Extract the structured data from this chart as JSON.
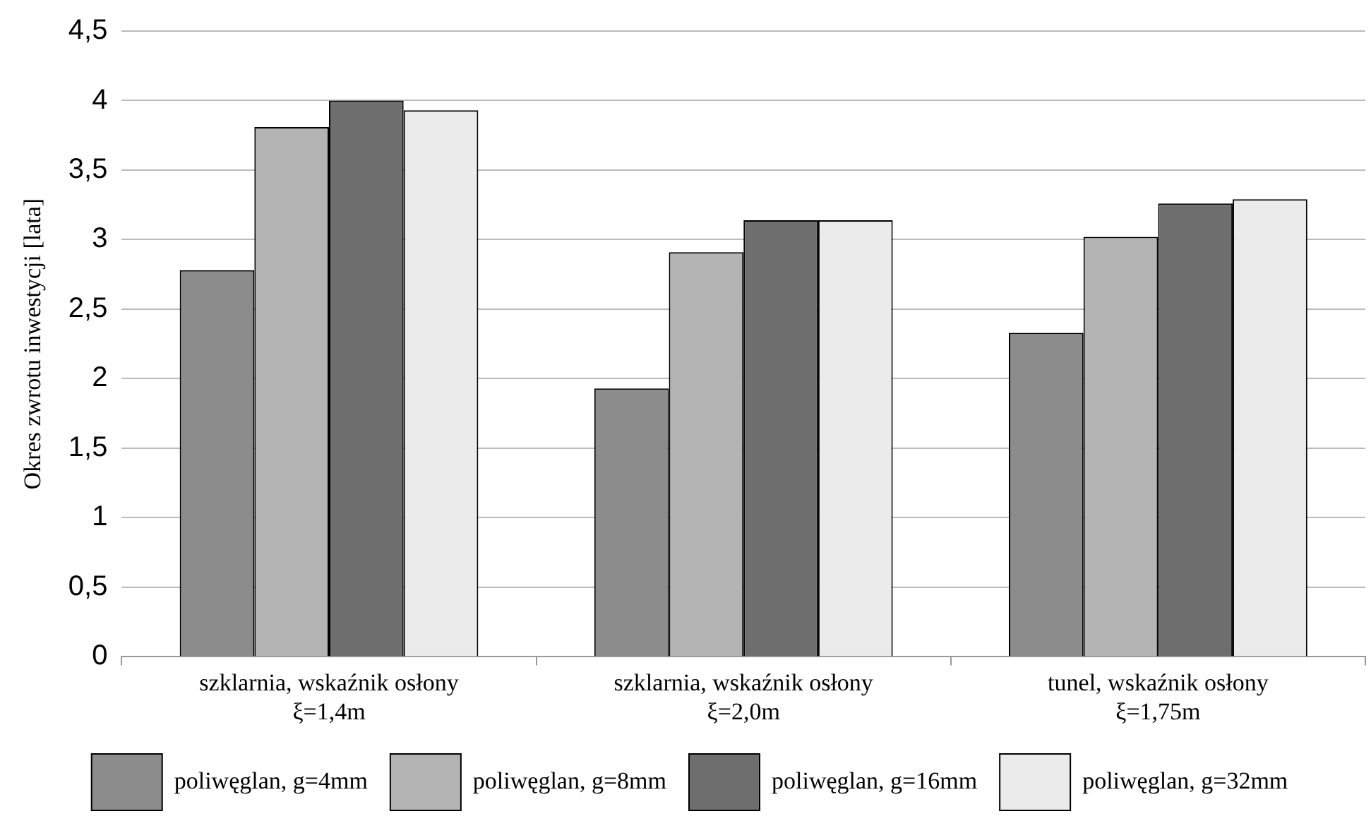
{
  "chart_data": {
    "type": "bar",
    "ylabel": "Okres zwrotu inwestycji [lata]",
    "categories": [
      "szklarnia, wskaźnik osłony ξ=1,4m",
      "szklarnia, wskaźnik osłony ξ=2,0m",
      "tunel, wskaźnik osłony ξ=1,75m"
    ],
    "series": [
      {
        "name": "poliwęglan, g=4mm",
        "color": "#8c8c8c",
        "values": [
          2.78,
          1.93,
          2.33
        ]
      },
      {
        "name": "poliwęglan, g=8mm",
        "color": "#b4b4b4",
        "values": [
          3.81,
          2.91,
          3.02
        ]
      },
      {
        "name": "poliwęglan, g=16mm",
        "color": "#6e6e6e",
        "values": [
          4.0,
          3.14,
          3.26
        ]
      },
      {
        "name": "poliwęglan, g=32mm",
        "color": "#ebebeb",
        "values": [
          3.93,
          3.14,
          3.29
        ]
      }
    ],
    "ylim": [
      0,
      4.5
    ],
    "yticks": [
      0,
      {
        "value": 0.5,
        "label": "0,5"
      },
      1,
      {
        "value": 1.5,
        "label": "1,5"
      },
      2,
      {
        "value": 2.5,
        "label": "2,5"
      },
      3,
      {
        "value": 3.5,
        "label": "3,5"
      },
      4,
      {
        "value": 4.5,
        "label": "4,5"
      }
    ],
    "grid": "y",
    "legend": "bottom"
  }
}
